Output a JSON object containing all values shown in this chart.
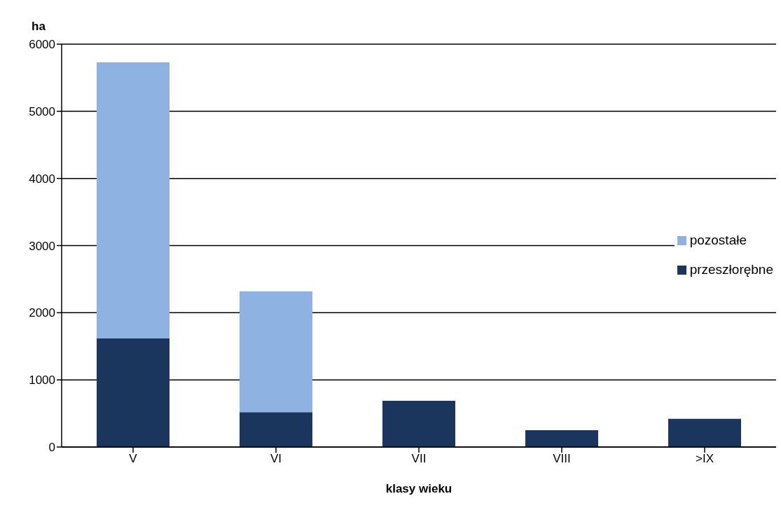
{
  "chart_data": {
    "type": "bar",
    "ylabel": "ha",
    "xlabel": "klasy wieku",
    "categories": [
      "V",
      "VI",
      "VII",
      "VIII",
      ">IX"
    ],
    "series": [
      {
        "name": "przeszłorębne",
        "color": "#1a365d",
        "values": [
          1620,
          520,
          690,
          250,
          420
        ]
      },
      {
        "name": "pozostałe",
        "color": "#8eb3e2",
        "values": [
          4110,
          1800,
          null,
          null,
          null
        ]
      }
    ],
    "stacked": true,
    "ylim": [
      0,
      6000
    ],
    "yticks": [
      0,
      1000,
      2000,
      3000,
      4000,
      5000,
      6000
    ],
    "grid": "y",
    "legend": "right"
  }
}
